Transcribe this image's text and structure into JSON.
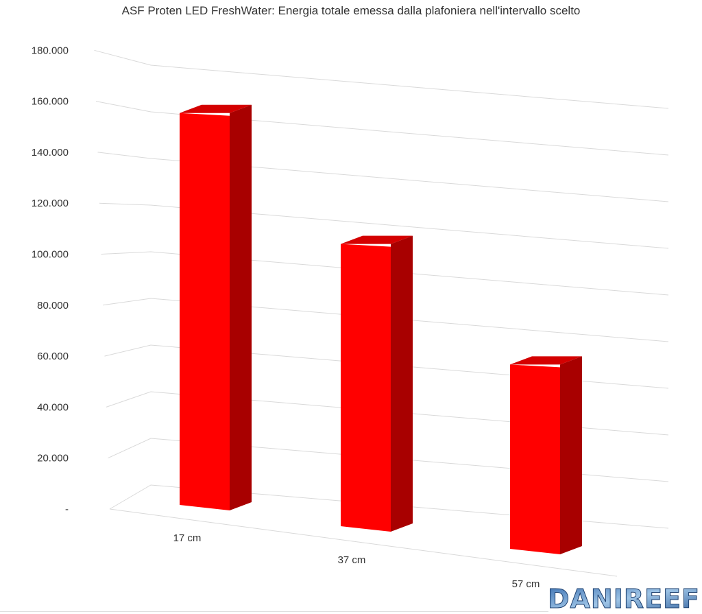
{
  "chart_data": {
    "type": "bar",
    "title": "ASF Proten LED FreshWater: Energia totale emessa dalla plafoniera nell'intervallo scelto",
    "categories": [
      "17 cm",
      "37 cm",
      "57 cm"
    ],
    "values": [
      168000,
      121000,
      79000
    ],
    "yticks": [
      "-",
      "20.000",
      "40.000",
      "60.000",
      "80.000",
      "100.000",
      "120.000",
      "140.000",
      "160.000",
      "180.000"
    ],
    "ylim": [
      0,
      180000
    ],
    "grid": true,
    "style": "3d-column",
    "colors": {
      "front": "#ff0000",
      "side": "#a80000",
      "top": "#d40000",
      "grid": "#d9d9d9",
      "text": "#333333"
    }
  },
  "watermark": {
    "text": "DANIREEF"
  }
}
